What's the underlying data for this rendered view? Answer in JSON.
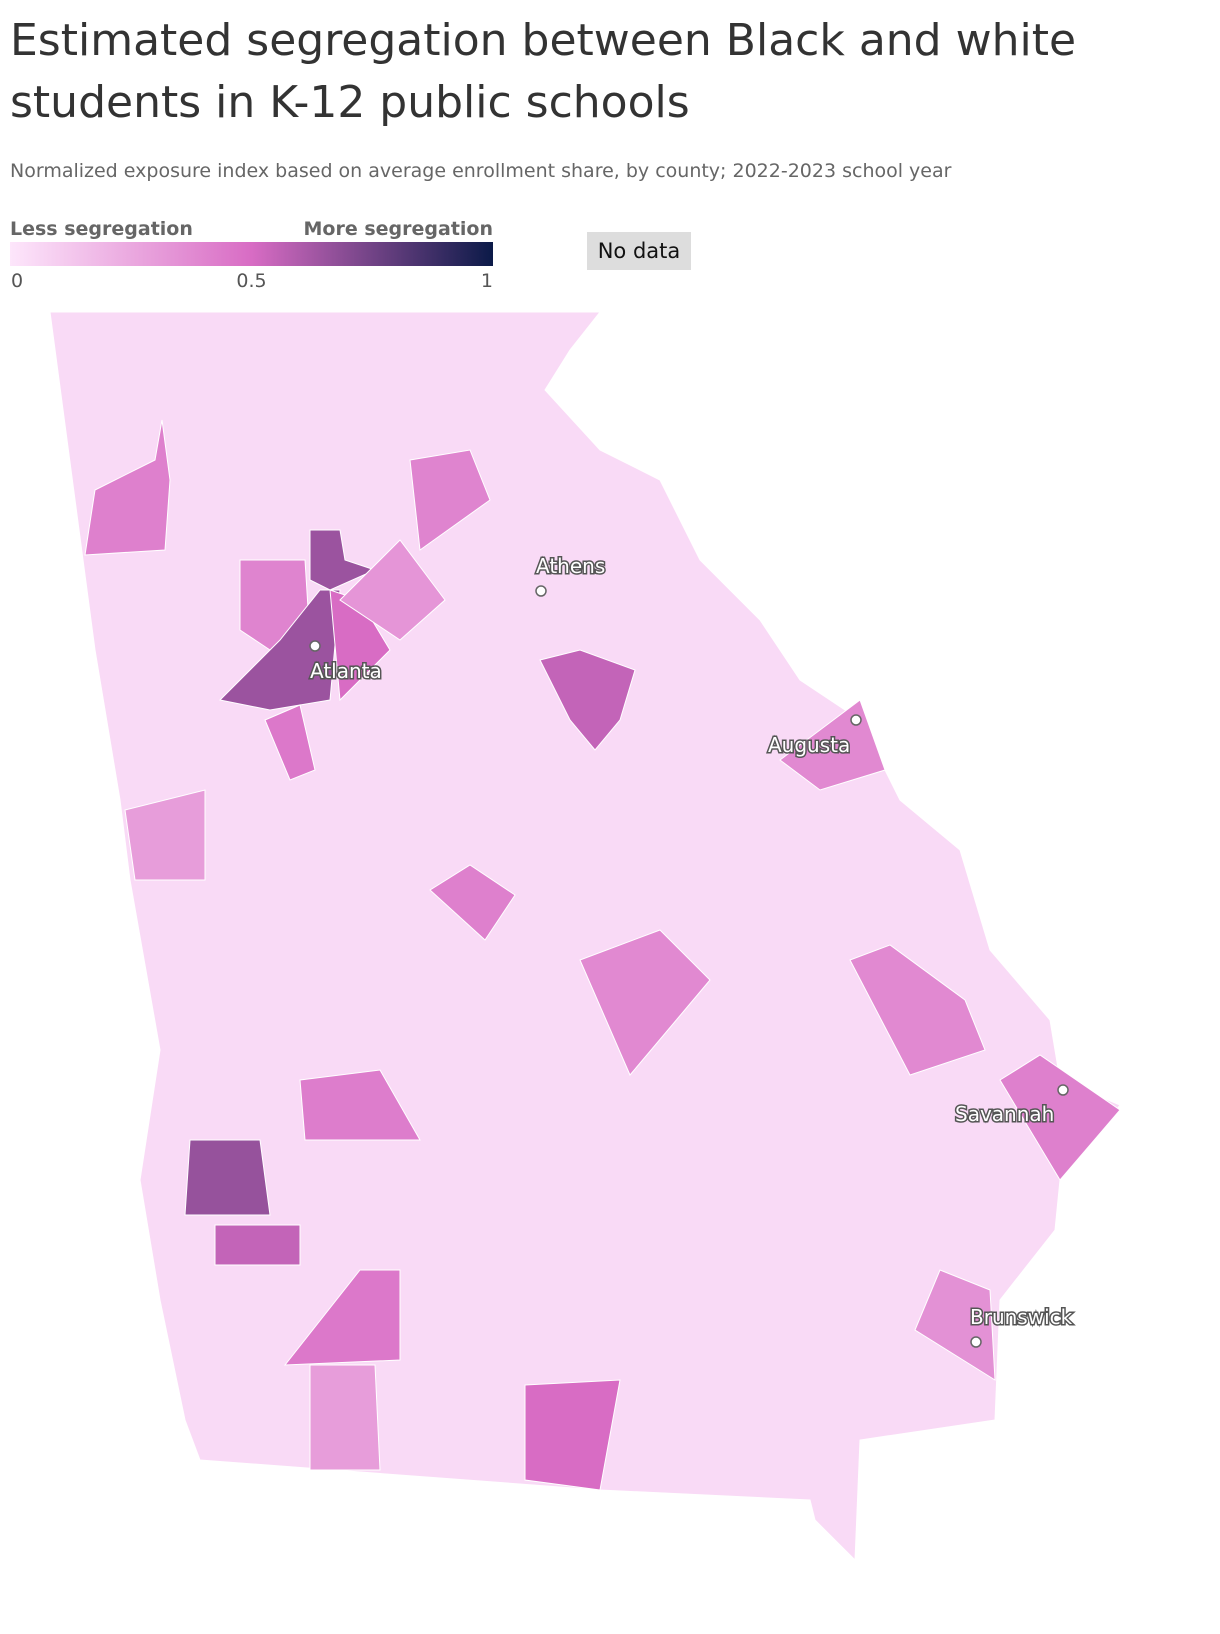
{
  "chart_data": {
    "type": "choropleth",
    "title": "Estimated segregation between Black and white students in K-12 public schools",
    "subtitle": "Normalized exposure index based on average enrollment share, by county; 2022-2023 school year",
    "legend": {
      "low_label": "Less segregation",
      "high_label": "More segregation",
      "ticks": [
        0,
        0.5,
        1
      ],
      "lim": [
        0,
        1
      ],
      "no_data": "No data",
      "no_data_color": "#dddddd"
    },
    "colorscale": [
      "#fde6fb",
      "#d86cc4",
      "#0b1a48"
    ],
    "regions": [
      0.05,
      0.42,
      0.4,
      0.65,
      0.65,
      0.5,
      0.33,
      0.4,
      0.45,
      0.38,
      0.55,
      0.42,
      0.38,
      0.38,
      0.42,
      0.43,
      0.66,
      0.55,
      0.45,
      0.5,
      0.35,
      0.3,
      0.3
    ],
    "cities": [
      "Athens",
      "Atlanta",
      "Augusta",
      "Savannah",
      "Brunswick"
    ]
  }
}
